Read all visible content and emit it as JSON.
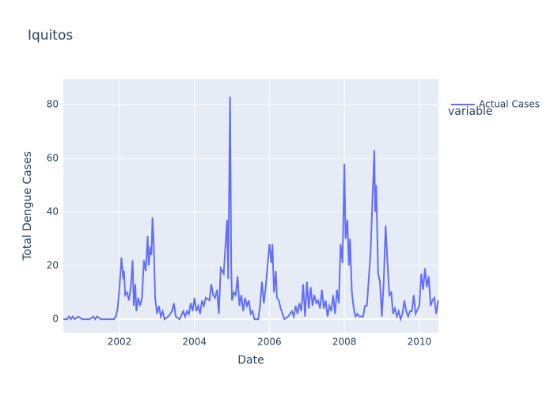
{
  "chart_data": {
    "type": "line",
    "title": "Iquitos",
    "x_label": "Date",
    "y_label": "Total Dengue Cases",
    "legend_title": "variable",
    "x": [
      2000.5,
      2000.6,
      2000.65,
      2000.7,
      2000.75,
      2000.8,
      2000.9,
      2001.0,
      2001.2,
      2001.3,
      2001.35,
      2001.4,
      2001.5,
      2001.7,
      2001.85,
      2001.9,
      2001.95,
      2002.0,
      2002.05,
      2002.1,
      2002.12,
      2002.15,
      2002.2,
      2002.25,
      2002.3,
      2002.35,
      2002.38,
      2002.42,
      2002.45,
      2002.5,
      2002.55,
      2002.6,
      2002.65,
      2002.7,
      2002.75,
      2002.78,
      2002.82,
      2002.85,
      2002.88,
      2002.92,
      2002.95,
      2003.0,
      2003.05,
      2003.1,
      2003.15,
      2003.2,
      2003.3,
      2003.4,
      2003.45,
      2003.5,
      2003.6,
      2003.7,
      2003.75,
      2003.8,
      2003.85,
      2003.9,
      2003.95,
      2004.0,
      2004.05,
      2004.1,
      2004.15,
      2004.2,
      2004.25,
      2004.3,
      2004.4,
      2004.45,
      2004.5,
      2004.55,
      2004.6,
      2004.65,
      2004.7,
      2004.78,
      2004.87,
      2004.9,
      2004.95,
      2004.98,
      2005.0,
      2005.05,
      2005.1,
      2005.15,
      2005.2,
      2005.25,
      2005.3,
      2005.35,
      2005.4,
      2005.45,
      2005.5,
      2005.55,
      2005.6,
      2005.7,
      2005.75,
      2005.8,
      2005.85,
      2005.9,
      2005.95,
      2006.0,
      2006.05,
      2006.08,
      2006.12,
      2006.17,
      2006.2,
      2006.25,
      2006.3,
      2006.35,
      2006.4,
      2006.5,
      2006.6,
      2006.65,
      2006.7,
      2006.75,
      2006.8,
      2006.85,
      2006.9,
      2006.95,
      2007.0,
      2007.05,
      2007.1,
      2007.15,
      2007.2,
      2007.25,
      2007.3,
      2007.35,
      2007.4,
      2007.45,
      2007.5,
      2007.55,
      2007.6,
      2007.65,
      2007.7,
      2007.75,
      2007.8,
      2007.85,
      2007.9,
      2007.95,
      2008.0,
      2008.03,
      2008.08,
      2008.12,
      2008.15,
      2008.2,
      2008.25,
      2008.3,
      2008.35,
      2008.4,
      2008.5,
      2008.55,
      2008.6,
      2008.7,
      2008.75,
      2008.8,
      2008.82,
      2008.85,
      2008.9,
      2008.95,
      2009.0,
      2009.05,
      2009.1,
      2009.15,
      2009.2,
      2009.25,
      2009.3,
      2009.35,
      2009.4,
      2009.45,
      2009.5,
      2009.55,
      2009.6,
      2009.65,
      2009.7,
      2009.75,
      2009.8,
      2009.85,
      2009.9,
      2010.0,
      2010.05,
      2010.1,
      2010.15,
      2010.2,
      2010.25,
      2010.3,
      2010.35,
      2010.4,
      2010.45,
      2010.5
    ],
    "series": [
      {
        "name": "Actual Cases",
        "color": "#636efa",
        "values": [
          0,
          0,
          1,
          0,
          1,
          0,
          1,
          0,
          0,
          1,
          0,
          1,
          0,
          0,
          0,
          1,
          4,
          12,
          23,
          15,
          18,
          9,
          10,
          7,
          12,
          22,
          5,
          13,
          3,
          8,
          5,
          8,
          22,
          18,
          31,
          20,
          27,
          24,
          38,
          25,
          8,
          2,
          5,
          1,
          3,
          0,
          1,
          3,
          6,
          1,
          0,
          3,
          1,
          3,
          2,
          6,
          3,
          8,
          3,
          5,
          2,
          7,
          5,
          8,
          7,
          13,
          9,
          8,
          11,
          2,
          19,
          17,
          37,
          15,
          83,
          20,
          7,
          10,
          9,
          16,
          5,
          9,
          3,
          8,
          5,
          7,
          2,
          3,
          0,
          0,
          5,
          14,
          6,
          12,
          20,
          28,
          21,
          28,
          10,
          18,
          8,
          7,
          4,
          2,
          0,
          1,
          3,
          1,
          5,
          2,
          6,
          3,
          13,
          1,
          14,
          4,
          12,
          5,
          9,
          6,
          7,
          4,
          11,
          4,
          7,
          1,
          5,
          3,
          9,
          2,
          11,
          6,
          28,
          21,
          58,
          30,
          37,
          20,
          30,
          10,
          4,
          1,
          2,
          1,
          1,
          5,
          5,
          25,
          45,
          63,
          40,
          50,
          17,
          14,
          1,
          14,
          35,
          21,
          9,
          10,
          2,
          4,
          1,
          3,
          0,
          2,
          7,
          3,
          1,
          3,
          3,
          9,
          2,
          5,
          17,
          11,
          19,
          12,
          16,
          5,
          7,
          8,
          2,
          7
        ]
      }
    ],
    "xlim": [
      2000.5,
      2010.51
    ],
    "ylim": [
      -5,
      89.5
    ],
    "xticks": [
      2002,
      2004,
      2006,
      2008,
      2010
    ],
    "yticks": [
      0,
      20,
      40,
      60,
      80
    ],
    "grid": true
  }
}
